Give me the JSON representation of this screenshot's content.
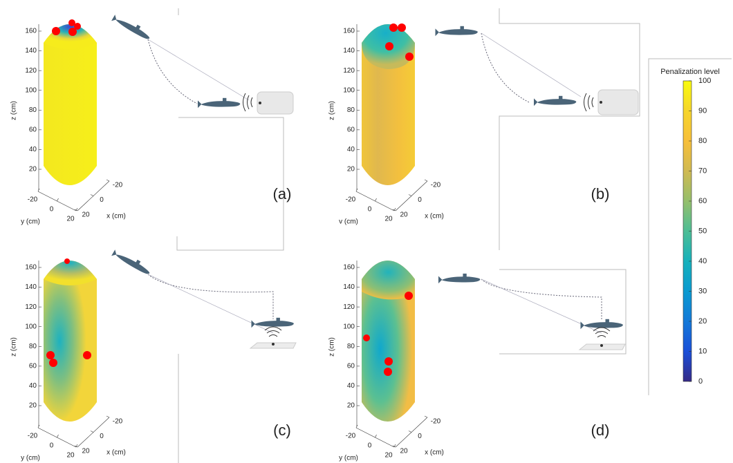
{
  "panels": [
    {
      "label": "(a)",
      "z_axis_label": "z (cm)",
      "y_axis_label": "y (cm)",
      "x_axis_label": "x (cm)",
      "zticks": [
        20,
        40,
        60,
        80,
        100,
        120,
        140,
        160
      ],
      "yticks": [
        -20,
        0,
        20
      ],
      "xticks": [
        -20,
        0,
        20
      ]
    },
    {
      "label": "(b)",
      "z_axis_label": "z (cm)",
      "y_axis_label": "v (cm)",
      "x_axis_label": "x (cm)",
      "zticks": [
        20,
        40,
        60,
        80,
        100,
        120,
        140,
        160
      ],
      "yticks": [
        -20,
        0,
        20
      ],
      "xticks": [
        -20,
        0,
        20
      ]
    },
    {
      "label": "(c)",
      "z_axis_label": "z (cm)",
      "y_axis_label": "y (cm)",
      "x_axis_label": "x (cm)",
      "zticks": [
        20,
        40,
        60,
        80,
        100,
        120,
        140,
        160
      ],
      "yticks": [
        -20,
        0,
        20
      ],
      "xticks": [
        -20,
        0,
        20
      ]
    },
    {
      "label": "(d)",
      "z_axis_label": "z (cm)",
      "y_axis_label": "y (cm)",
      "x_axis_label": "x (cm)",
      "zticks": [
        20,
        40,
        60,
        80,
        100,
        120,
        140,
        160
      ],
      "yticks": [
        -20,
        0,
        20
      ],
      "xticks": [
        -20,
        0,
        20
      ]
    }
  ],
  "colorbar": {
    "title": "Penalization level",
    "clim": [
      0,
      100
    ],
    "ticks": [
      0,
      10,
      20,
      30,
      40,
      50,
      60,
      70,
      80,
      90,
      100
    ]
  }
}
